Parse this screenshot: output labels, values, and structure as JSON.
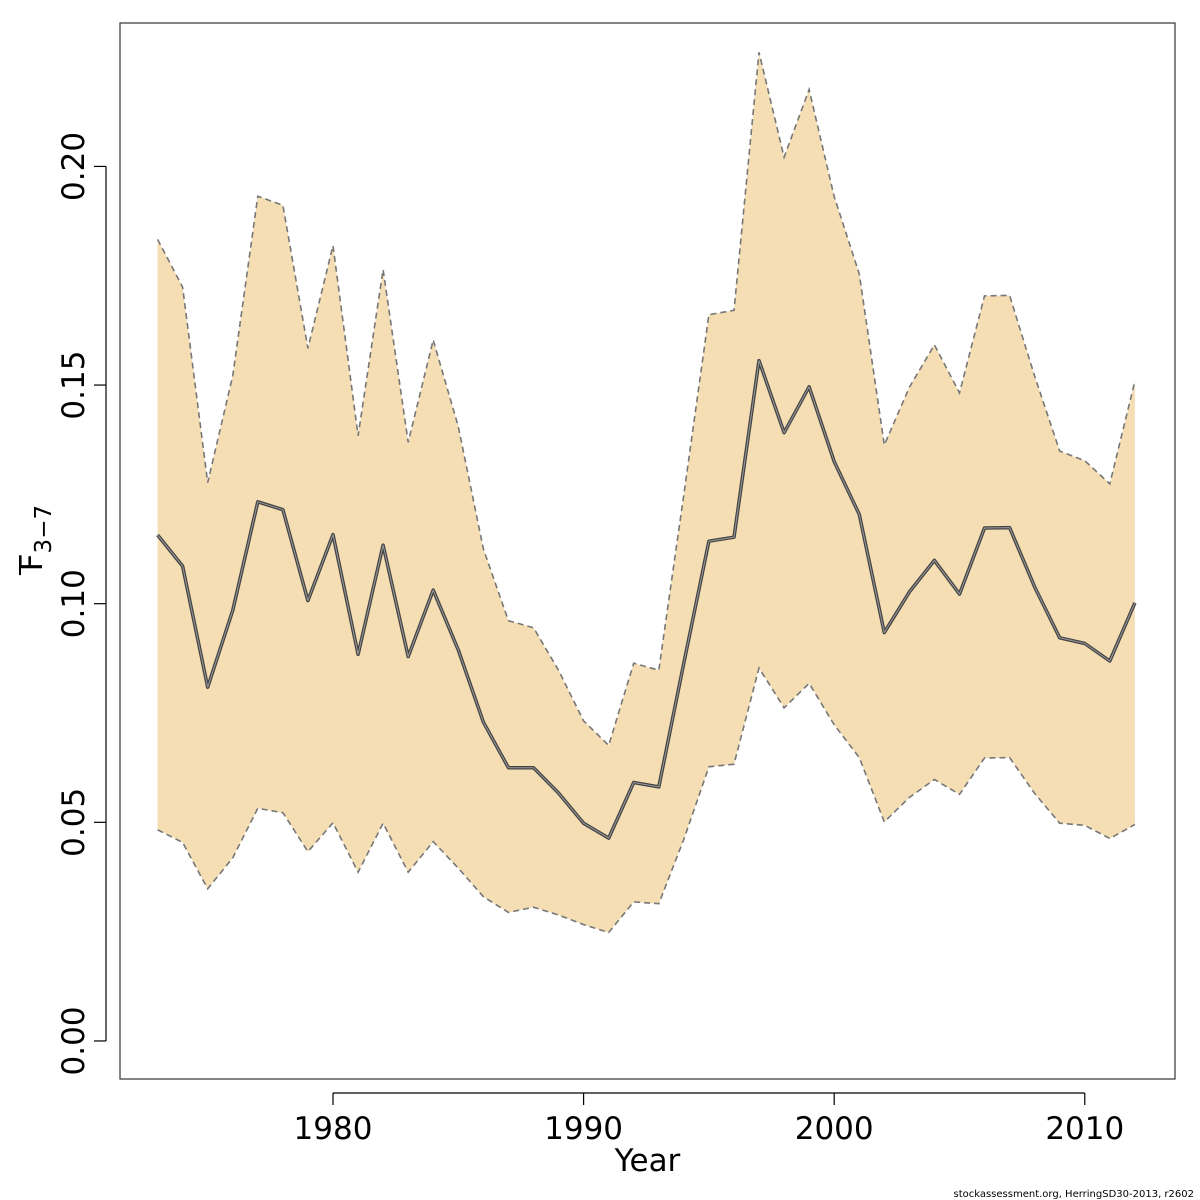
{
  "chart_data": {
    "type": "area",
    "xlabel": "Year",
    "ylabel": {
      "main": "F",
      "sub": "3−7"
    },
    "xlim": [
      1971.5,
      2013.6
    ],
    "ylim": [
      -0.0087,
      0.2328
    ],
    "x_ticks": [
      1980,
      1990,
      2000,
      2010
    ],
    "x_tick_labels": [
      "1980",
      "1990",
      "2000",
      "2010"
    ],
    "y_ticks": [
      0.0,
      0.05,
      0.1,
      0.15,
      0.2
    ],
    "y_tick_labels": [
      "0.00",
      "0.05",
      "0.10",
      "0.15",
      "0.20"
    ],
    "grid": false,
    "colors": {
      "band": "#f5deb3",
      "line": "#444444",
      "bound": "#777777",
      "frame": "#333333"
    },
    "x": [
      1973,
      1974,
      1975,
      1976,
      1977,
      1978,
      1979,
      1980,
      1981,
      1982,
      1983,
      1984,
      1985,
      1986,
      1987,
      1988,
      1989,
      1990,
      1991,
      1992,
      1993,
      1994,
      1995,
      1996,
      1997,
      1998,
      1999,
      2000,
      2001,
      2002,
      2003,
      2004,
      2005,
      2006,
      2007,
      2008,
      2009,
      2010,
      2011,
      2012
    ],
    "series": [
      {
        "role": "estimate",
        "values": [
          0.1157,
          0.1086,
          0.0809,
          0.0985,
          0.1233,
          0.1215,
          0.1007,
          0.1158,
          0.0884,
          0.1134,
          0.0879,
          0.1031,
          0.0894,
          0.0729,
          0.0625,
          0.0625,
          0.0567,
          0.0498,
          0.0464,
          0.0591,
          0.0581,
          0.0864,
          0.1143,
          0.1152,
          0.1556,
          0.1391,
          0.1496,
          0.1325,
          0.1204,
          0.0934,
          0.1027,
          0.1099,
          0.1022,
          0.1173,
          0.1174,
          0.1038,
          0.0922,
          0.0909,
          0.0869,
          0.1002
        ]
      },
      {
        "role": "upper",
        "values": [
          0.1833,
          0.1724,
          0.1277,
          0.1522,
          0.1932,
          0.1911,
          0.1584,
          0.1819,
          0.1384,
          0.1764,
          0.1369,
          0.1603,
          0.1405,
          0.1125,
          0.0961,
          0.0945,
          0.0848,
          0.0732,
          0.0676,
          0.0864,
          0.0848,
          0.1249,
          0.1661,
          0.1671,
          0.2261,
          0.2021,
          0.2176,
          0.1931,
          0.1754,
          0.1363,
          0.1495,
          0.1592,
          0.1482,
          0.1704,
          0.1705,
          0.152,
          0.1349,
          0.1327,
          0.1274,
          0.1509
        ]
      },
      {
        "role": "lower",
        "values": [
          0.0483,
          0.0454,
          0.0348,
          0.0419,
          0.0532,
          0.0522,
          0.0433,
          0.0499,
          0.0386,
          0.0498,
          0.0386,
          0.0456,
          0.0395,
          0.033,
          0.0294,
          0.0306,
          0.0288,
          0.0266,
          0.0248,
          0.0318,
          0.0314,
          0.0461,
          0.0627,
          0.0633,
          0.0853,
          0.0762,
          0.0818,
          0.0723,
          0.0648,
          0.0501,
          0.0557,
          0.0598,
          0.0564,
          0.0647,
          0.0648,
          0.0566,
          0.0498,
          0.0493,
          0.0463,
          0.0495
        ]
      }
    ]
  },
  "footer": {
    "credit": "stockassessment.org, HerringSD30-2013, r2602"
  }
}
